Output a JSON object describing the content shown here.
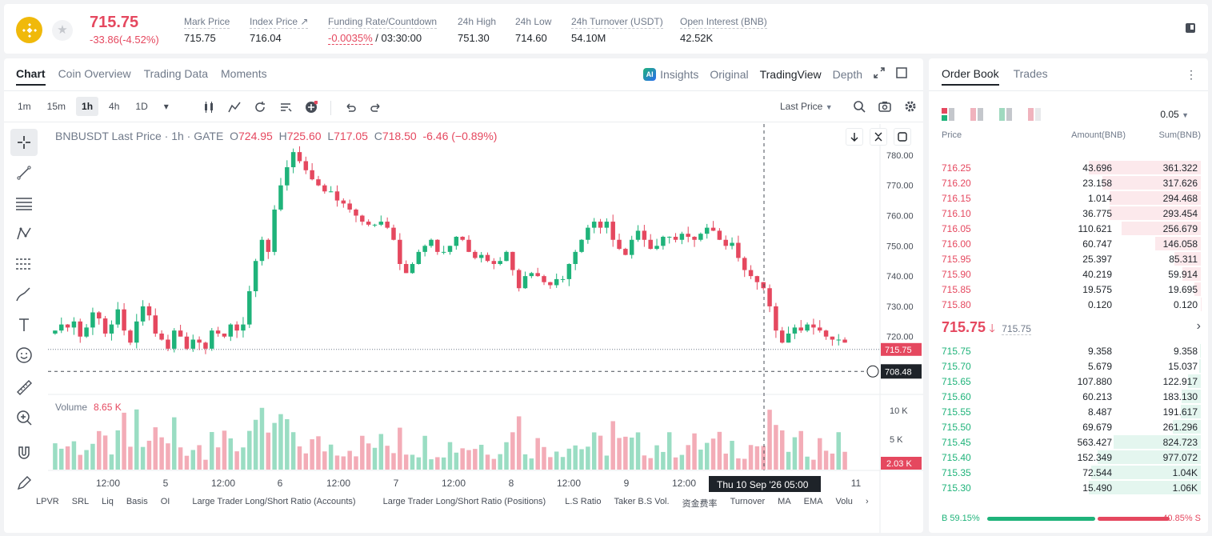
{
  "header": {
    "last_price": "715.75",
    "price_change": "-33.86(-4.52%)",
    "stats": [
      {
        "label": "Mark Price",
        "value": "715.75"
      },
      {
        "label": "Index Price ↗",
        "value": "716.04"
      },
      {
        "label": "Funding Rate/Countdown",
        "value_red": "-0.0035%",
        "value": " / 03:30:00"
      },
      {
        "label": "24h High",
        "value": "751.30"
      },
      {
        "label": "24h Low",
        "value": "714.60"
      },
      {
        "label": "24h Turnover (USDT)",
        "value": "54.10M"
      },
      {
        "label": "Open Interest (BNB)",
        "value": "42.52K"
      }
    ]
  },
  "chart_tabs": [
    "Chart",
    "Coin Overview",
    "Trading Data",
    "Moments"
  ],
  "chart_views": {
    "insights": "Insights",
    "original": "Original",
    "tradingview": "TradingView",
    "depth": "Depth"
  },
  "intervals": [
    "1m",
    "15m",
    "1h",
    "4h",
    "1D"
  ],
  "price_type": "Last Price",
  "ohlc": {
    "symbol": "BNBUSDT Last Price · 1h · GATE",
    "o": "724.95",
    "h": "725.60",
    "l": "717.05",
    "c": "718.50",
    "chg": "-6.46 (−0.89%)"
  },
  "volume": {
    "label": "Volume",
    "value": "8.65 K"
  },
  "price_tags": {
    "current": "715.75",
    "cursor": "708.48",
    "volume_current": "2.03 K",
    "time_cursor": "Thu 10 Sep '26   05:00"
  },
  "bottom_indicators": [
    "LPVR",
    "SRL",
    "Liq",
    "Basis",
    "OI",
    "Large Trader Long/Short Ratio (Accounts)",
    "Large Trader Long/Short Ratio (Positions)",
    "L.S Ratio",
    "Taker B.S Vol.",
    "资金费率",
    "Turnover",
    "MA",
    "EMA",
    "Volu"
  ],
  "chart_data": {
    "type": "candlestick",
    "ylim": [
      703,
      785
    ],
    "y_ticks": [
      "780.00",
      "770.00",
      "760.00",
      "750.00",
      "740.00",
      "730.00",
      "720.00"
    ],
    "vol_ticks": [
      "10 K",
      "5 K"
    ],
    "x_ticks": [
      "12:00",
      "5",
      "12:00",
      "6",
      "12:00",
      "7",
      "12:00",
      "8",
      "12:00",
      "9",
      "12:00",
      "11"
    ],
    "closes": [
      722,
      724,
      723,
      725,
      720,
      723,
      728,
      726,
      721,
      724,
      729,
      722,
      718,
      725,
      730,
      727,
      721,
      719,
      716,
      722,
      720,
      716,
      719,
      718,
      716,
      722,
      721,
      720,
      724,
      722,
      724,
      735,
      745,
      752,
      748,
      762,
      770,
      776,
      781,
      778,
      775,
      772,
      770,
      768,
      768,
      765,
      764,
      762,
      760,
      758,
      757,
      757,
      758,
      756,
      752,
      744,
      741,
      744,
      748,
      750,
      752,
      748,
      748,
      750,
      753,
      752,
      748,
      746,
      747,
      745,
      744,
      745,
      748,
      742,
      736,
      740,
      741,
      740,
      738,
      737,
      739,
      739,
      744,
      748,
      752,
      756,
      758,
      756,
      758,
      752,
      749,
      747,
      752,
      755,
      752,
      749,
      750,
      753,
      753,
      752,
      754,
      753,
      752,
      754,
      756,
      755,
      752,
      750,
      751,
      746,
      742,
      740,
      738,
      736,
      730,
      722,
      718,
      721,
      723,
      722,
      724,
      723,
      722,
      720,
      719,
      719,
      718
    ]
  },
  "order_book": {
    "tabs": [
      "Order Book",
      "Trades"
    ],
    "tick": "0.05",
    "headers": [
      "Price",
      "Amount(BNB)",
      "Sum(BNB)"
    ],
    "asks": [
      {
        "price": "716.25",
        "amount": "43.696",
        "sum": "361.322",
        "depth": 1.0
      },
      {
        "price": "716.20",
        "amount": "23.158",
        "sum": "317.626",
        "depth": 0.88
      },
      {
        "price": "716.15",
        "amount": "1.014",
        "sum": "294.468",
        "depth": 0.815
      },
      {
        "price": "716.10",
        "amount": "36.775",
        "sum": "293.454",
        "depth": 0.812
      },
      {
        "price": "716.05",
        "amount": "110.621",
        "sum": "256.679",
        "depth": 0.71
      },
      {
        "price": "716.00",
        "amount": "60.747",
        "sum": "146.058",
        "depth": 0.404
      },
      {
        "price": "715.95",
        "amount": "25.397",
        "sum": "85.311",
        "depth": 0.236
      },
      {
        "price": "715.90",
        "amount": "40.219",
        "sum": "59.914",
        "depth": 0.166
      },
      {
        "price": "715.85",
        "amount": "19.575",
        "sum": "19.695",
        "depth": 0.055
      },
      {
        "price": "715.80",
        "amount": "0.120",
        "sum": "0.120",
        "depth": 0.003
      }
    ],
    "mid_price": "715.75",
    "mid_mark": "715.75",
    "bids": [
      {
        "price": "715.75",
        "amount": "9.358",
        "sum": "9.358",
        "depth": 0.009
      },
      {
        "price": "715.70",
        "amount": "5.679",
        "sum": "15.037",
        "depth": 0.014
      },
      {
        "price": "715.65",
        "amount": "107.880",
        "sum": "122.917",
        "depth": 0.116
      },
      {
        "price": "715.60",
        "amount": "60.213",
        "sum": "183.130",
        "depth": 0.173
      },
      {
        "price": "715.55",
        "amount": "8.487",
        "sum": "191.617",
        "depth": 0.181
      },
      {
        "price": "715.50",
        "amount": "69.679",
        "sum": "261.296",
        "depth": 0.247
      },
      {
        "price": "715.45",
        "amount": "563.427",
        "sum": "824.723",
        "depth": 0.778
      },
      {
        "price": "715.40",
        "amount": "152.349",
        "sum": "977.072",
        "depth": 0.922
      },
      {
        "price": "715.35",
        "amount": "72.544",
        "sum": "1.04K",
        "depth": 0.98
      },
      {
        "price": "715.30",
        "amount": "15.490",
        "sum": "1.06K",
        "depth": 1.0
      }
    ],
    "buy_ratio": "B 59.15%",
    "sell_ratio": "40.85% S",
    "buy_fraction": 0.5915
  },
  "colors": {
    "up": "#1fb37a",
    "down": "#e5485f"
  }
}
